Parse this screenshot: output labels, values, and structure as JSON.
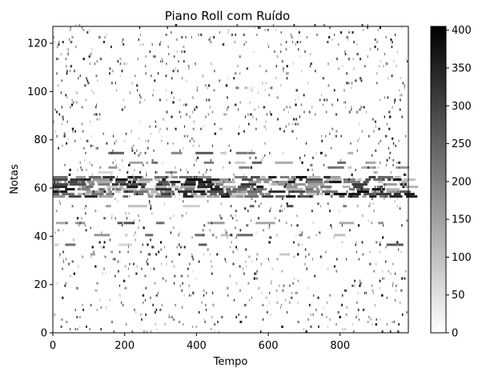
{
  "chart_data": {
    "type": "heatmap",
    "title": "Piano Roll com Ruído",
    "xlabel": "Tempo",
    "ylabel": "Notas",
    "xlim": [
      0,
      990
    ],
    "ylim": [
      0,
      127
    ],
    "x_ticks": [
      0,
      200,
      400,
      600,
      800
    ],
    "y_ticks": [
      0,
      20,
      40,
      60,
      80,
      100,
      120
    ],
    "colormap": "gray_r",
    "colors": {
      "low": "#ffffff",
      "high": "#000000"
    },
    "colorbar": {
      "range": [
        0,
        405
      ],
      "ticks": [
        0,
        50,
        100,
        150,
        200,
        250,
        300,
        350,
        400
      ]
    },
    "grid": false,
    "dense_band_notes": [
      56,
      57,
      58,
      59,
      60,
      61,
      62,
      63,
      64
    ],
    "mid_band_notes": [
      32,
      36,
      40,
      45,
      52,
      66,
      68,
      70,
      74
    ]
  }
}
